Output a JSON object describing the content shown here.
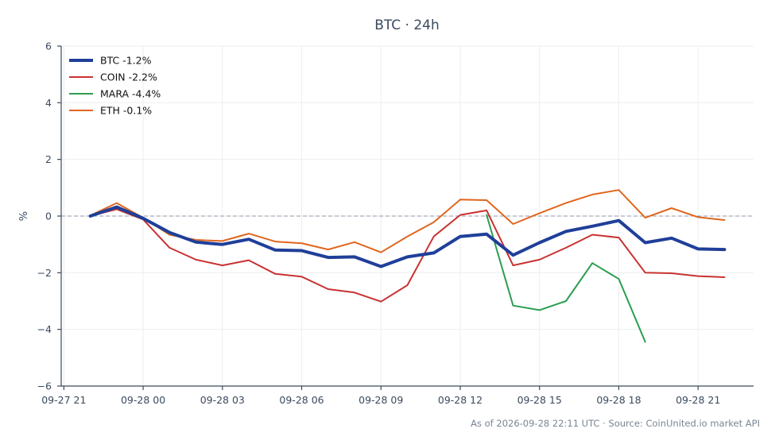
{
  "chart_data": {
    "type": "line",
    "title": "BTC · 24h",
    "xlabel": "",
    "ylabel": "%",
    "ylim": [
      -6,
      6
    ],
    "y_ticks": [
      6,
      4,
      2,
      0,
      -2,
      -4,
      -6
    ],
    "y_tick_labels": [
      "6",
      "4",
      "2",
      "0",
      "−2",
      "−4",
      "−6"
    ],
    "x_ticks": [
      "09-27 21",
      "09-28 00",
      "09-28 03",
      "09-28 06",
      "09-28 09",
      "09-28 12",
      "09-28 15",
      "09-28 18",
      "09-28 21"
    ],
    "x_tick_hours": [
      0,
      3,
      6,
      9,
      12,
      15,
      18,
      21,
      24
    ],
    "x_range_hours": [
      -0.1,
      26.1
    ],
    "x_unit": "hours since 09-27 21:00",
    "zero_line": true,
    "grid": true,
    "legend_position": "top-left",
    "x": [
      1,
      2,
      3,
      4,
      5,
      6,
      7,
      8,
      9,
      10,
      11,
      12,
      13,
      14,
      15,
      16,
      17,
      18,
      19,
      20,
      21,
      22,
      23,
      24,
      25
    ],
    "series": [
      {
        "name": "BTC -1.2%",
        "color": "#1f3f99",
        "width": 4,
        "values": [
          0.0,
          0.32,
          -0.08,
          -0.58,
          -0.92,
          -1.0,
          -0.82,
          -1.2,
          -1.22,
          -1.46,
          -1.44,
          -1.78,
          -1.44,
          -1.3,
          -0.72,
          -0.64,
          -1.38,
          -0.94,
          -0.54,
          -0.36,
          -0.16,
          -0.94,
          -0.78,
          -1.16,
          -1.18
        ]
      },
      {
        "name": "COIN -2.2%",
        "color": "#c93232",
        "width": 2,
        "values": [
          0.0,
          0.24,
          -0.12,
          -1.12,
          -1.54,
          -1.74,
          -1.56,
          -2.04,
          -2.14,
          -2.58,
          -2.7,
          -3.02,
          -2.44,
          -0.72,
          0.04,
          0.2,
          -1.74,
          -1.54,
          -1.12,
          -0.66,
          -0.76,
          -2.0,
          -2.02,
          -2.12,
          -2.16
        ]
      },
      {
        "name": "MARA -4.4%",
        "color": "#2b9e4f",
        "width": 2,
        "values": [
          null,
          null,
          null,
          null,
          null,
          null,
          null,
          null,
          null,
          null,
          null,
          null,
          null,
          null,
          null,
          0.04,
          -3.16,
          -3.32,
          -3.0,
          -1.66,
          -2.22,
          -4.44,
          null,
          null,
          null
        ]
      },
      {
        "name": "ETH -0.1%",
        "color": "#e0661e",
        "width": 2,
        "values": [
          0.02,
          0.46,
          -0.06,
          -0.66,
          -0.84,
          -0.88,
          -0.62,
          -0.9,
          -0.96,
          -1.18,
          -0.92,
          -1.28,
          -0.72,
          -0.22,
          0.58,
          0.56,
          -0.28,
          0.1,
          0.46,
          0.76,
          0.92,
          -0.06,
          0.28,
          -0.04,
          -0.14
        ]
      }
    ]
  },
  "footer": "As of 2026-09-28 22:11 UTC · Source: CoinUnited.io market API"
}
